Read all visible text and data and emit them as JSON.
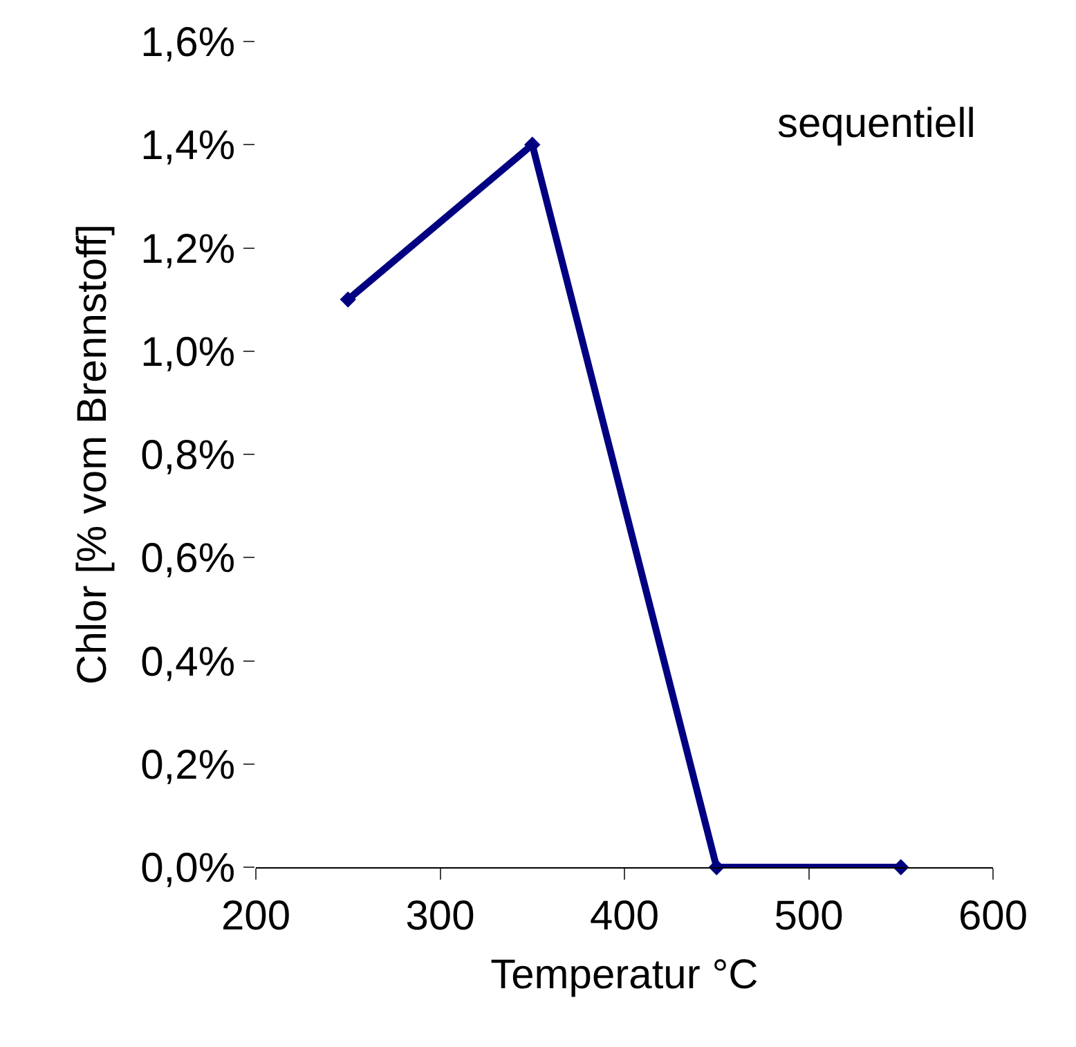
{
  "chart_data": {
    "type": "line",
    "xlabel": "Temperatur °C",
    "ylabel": "Chlor [% vom Brennstoff]",
    "x": [
      250,
      350,
      450,
      550
    ],
    "series": [
      {
        "color": "#000080",
        "values": [
          1.1,
          1.4,
          0.0,
          0.0
        ]
      }
    ],
    "xlim": [
      200,
      600
    ],
    "xticks": [
      200,
      300,
      400,
      500,
      600
    ],
    "ylim": [
      0,
      1.6
    ],
    "yticks": [
      {
        "value": 0,
        "label": "0,0%"
      },
      {
        "value": 0.2,
        "label": "0,2%"
      },
      {
        "value": 0.4,
        "label": "0,4%"
      },
      {
        "value": 0.6,
        "label": "0,6%"
      },
      {
        "value": 0.8,
        "label": "0,8%"
      },
      {
        "value": 1.0,
        "label": "1,0%"
      },
      {
        "value": 1.2,
        "label": "1,2%"
      },
      {
        "value": 1.4,
        "label": "1,4%"
      },
      {
        "value": 1.6,
        "label": "1,6%"
      }
    ],
    "annotations": [
      "sequentiell"
    ],
    "marker": "diamond",
    "line_style": "solid"
  }
}
